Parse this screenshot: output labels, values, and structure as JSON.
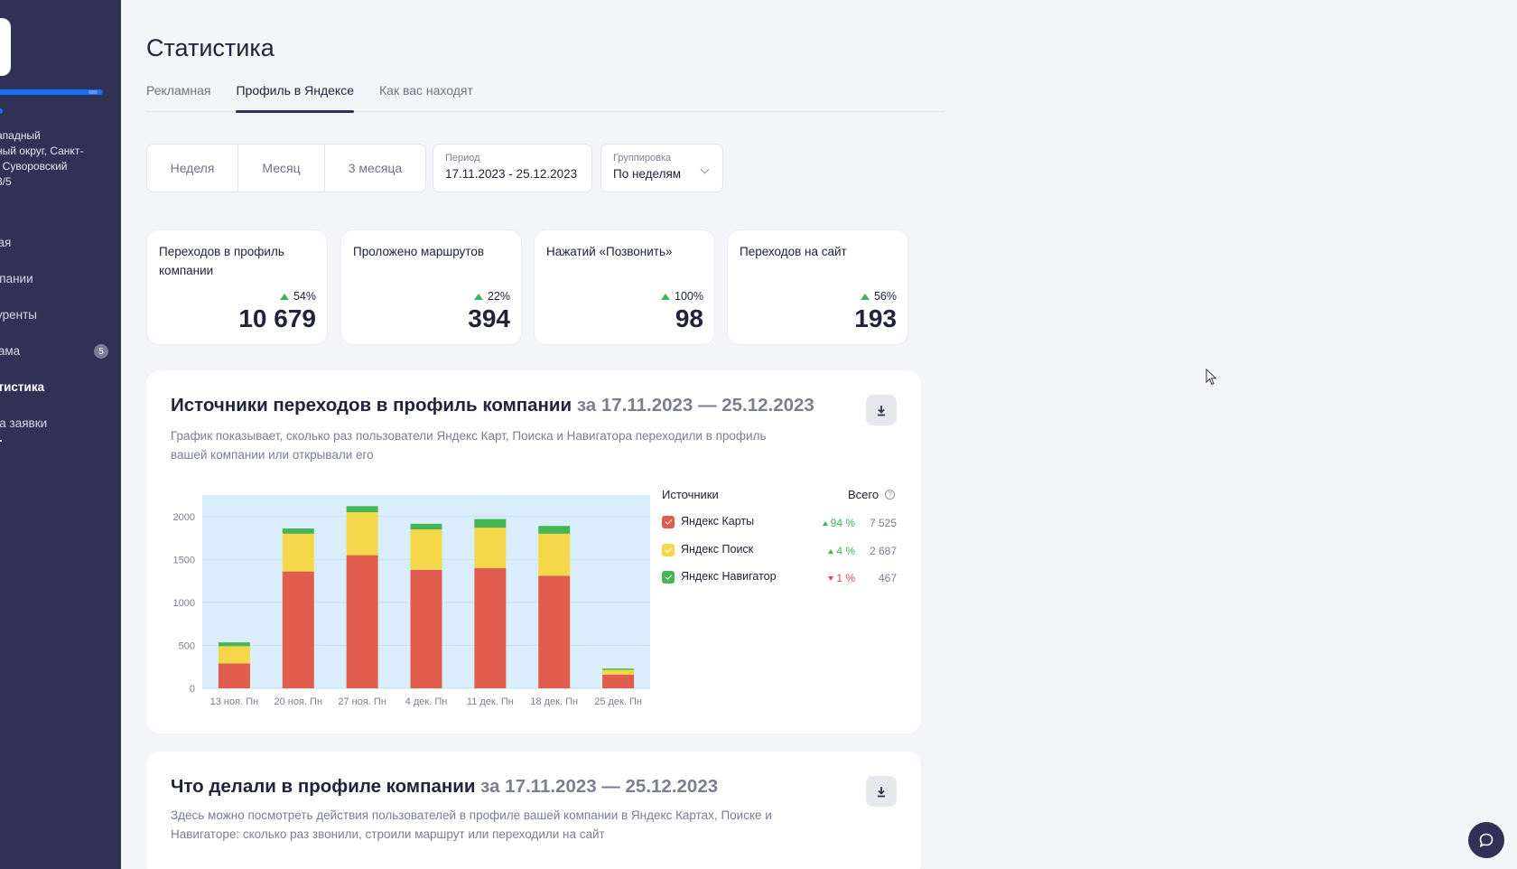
{
  "sidebar": {
    "address": "ападный\nный округ, Санкт-\n, Суворовский\n3/5",
    "items": [
      {
        "label": "ная",
        "active": false
      },
      {
        "label": "мпании",
        "active": false
      },
      {
        "label": "куренты",
        "active": false
      },
      {
        "label": "лама",
        "active": false,
        "badge": "5"
      },
      {
        "label": "стистика",
        "active": true
      },
      {
        "label": "ма заявки",
        "active": false
      }
    ]
  },
  "header": {
    "title": "Статистика"
  },
  "tabs": [
    {
      "label": "Рекламная",
      "active": false
    },
    {
      "label": "Профиль в Яндексе",
      "active": true
    },
    {
      "label": "Как вас находят",
      "active": false
    }
  ],
  "filters": {
    "periods": [
      "Неделя",
      "Месяц",
      "3 месяца"
    ],
    "period_label": "Период",
    "period_value": "17.11.2023 - 25.12.2023",
    "grouping_label": "Группировка",
    "grouping_value": "По неделям"
  },
  "kpis": [
    {
      "label": "Переходов в профиль компании",
      "change": "54%",
      "value": "10 679"
    },
    {
      "label": "Проложено маршрутов",
      "change": "22%",
      "value": "394"
    },
    {
      "label": "Нажатий «Позвонить»",
      "change": "100%",
      "value": "98"
    },
    {
      "label": "Переходов на сайт",
      "change": "56%",
      "value": "193"
    }
  ],
  "sources_card": {
    "title": "Источники переходов в профиль компании",
    "range": "за 17.11.2023 — 25.12.2023",
    "description": "График показывает, сколько раз пользователи Яндекс Карт, Поиска и Навигатора переходили в профиль вашей компании или открывали его"
  },
  "legend": {
    "header_sources": "Источники",
    "header_total": "Всего",
    "help": "?",
    "rows": [
      {
        "name": "Яндекс Карты",
        "color": "#e25c4e",
        "direction": "up",
        "pct": "94 %",
        "total": "7 525"
      },
      {
        "name": "Яндекс Поиск",
        "color": "#f5d74a",
        "direction": "up",
        "pct": "4 %",
        "total": "2 687"
      },
      {
        "name": "Яндекс Навигатор",
        "color": "#45b654",
        "direction": "down",
        "pct": "1 %",
        "total": "467"
      }
    ]
  },
  "chart_data": {
    "type": "bar",
    "stacked": true,
    "categories": [
      "13 ноя. Пн",
      "20 ноя. Пн",
      "27 ноя. Пн",
      "4 дек. Пн",
      "11 дек. Пн",
      "18 дек. Пн",
      "25 дек. Пн"
    ],
    "series": [
      {
        "name": "Яндекс Карты",
        "color": "#e25c4e",
        "values": [
          290,
          1360,
          1550,
          1380,
          1400,
          1310,
          160
        ]
      },
      {
        "name": "Яндекс Поиск",
        "color": "#f5d74a",
        "values": [
          200,
          440,
          500,
          470,
          470,
          490,
          55
        ]
      },
      {
        "name": "Яндекс Навигатор",
        "color": "#45b654",
        "values": [
          45,
          60,
          70,
          65,
          100,
          90,
          15
        ]
      }
    ],
    "yticks": [
      0,
      500,
      1000,
      1500,
      2000
    ],
    "ylim": [
      0,
      2250
    ],
    "plot_background": "#d9eefa"
  },
  "actions_card": {
    "title": "Что делали в профиле компании",
    "range": "за 17.11.2023 — 25.12.2023",
    "description": "Здесь можно посмотреть действия пользователей в профиле вашей компании в Яндекс Картах, Поиске и Навигаторе: сколько раз звонили, строили маршрут или переходили на сайт"
  },
  "icons": {
    "download": "download-icon",
    "chat": "chat-icon",
    "cursor": "cursor-icon"
  }
}
